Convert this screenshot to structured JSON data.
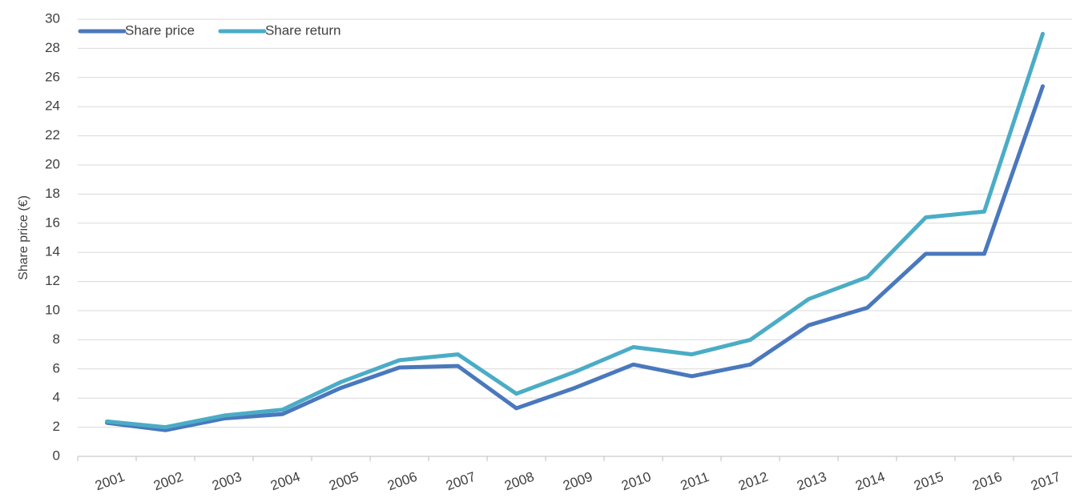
{
  "chart_data": {
    "type": "line",
    "y_label": "Share price (€)",
    "categories": [
      "2001",
      "2002",
      "2003",
      "2004",
      "2005",
      "2006",
      "2007",
      "2008",
      "2009",
      "2010",
      "2011",
      "2012",
      "2013",
      "2014",
      "2015",
      "2016",
      "2017"
    ],
    "series": [
      {
        "name": "Share price",
        "color": "#4a78bd",
        "values": [
          2.3,
          1.8,
          2.6,
          2.9,
          4.7,
          6.1,
          6.2,
          3.3,
          4.7,
          6.3,
          5.5,
          6.3,
          9.0,
          10.2,
          13.9,
          13.9,
          25.4
        ]
      },
      {
        "name": "Share return",
        "color": "#4bacc6",
        "values": [
          2.4,
          2.0,
          2.8,
          3.2,
          5.1,
          6.6,
          7.0,
          4.3,
          5.8,
          7.5,
          7.0,
          8.0,
          10.8,
          12.3,
          16.4,
          16.8,
          29.0
        ]
      }
    ],
    "ylim": [
      0,
      30
    ],
    "yticks": [
      0,
      2,
      4,
      6,
      8,
      10,
      12,
      14,
      16,
      18,
      20,
      22,
      24,
      26,
      28,
      30
    ],
    "grid": true,
    "legend": "top-left"
  }
}
